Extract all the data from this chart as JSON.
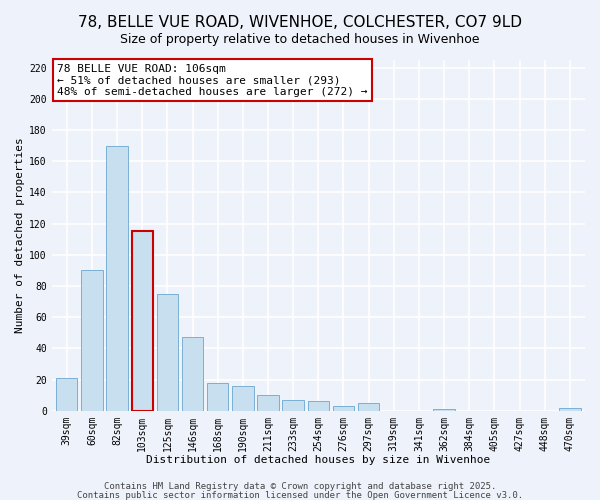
{
  "title": "78, BELLE VUE ROAD, WIVENHOE, COLCHESTER, CO7 9LD",
  "subtitle": "Size of property relative to detached houses in Wivenhoe",
  "xlabel": "Distribution of detached houses by size in Wivenhoe",
  "ylabel": "Number of detached properties",
  "categories": [
    "39sqm",
    "60sqm",
    "82sqm",
    "103sqm",
    "125sqm",
    "146sqm",
    "168sqm",
    "190sqm",
    "211sqm",
    "233sqm",
    "254sqm",
    "276sqm",
    "297sqm",
    "319sqm",
    "341sqm",
    "362sqm",
    "384sqm",
    "405sqm",
    "427sqm",
    "448sqm",
    "470sqm"
  ],
  "values": [
    21,
    90,
    170,
    115,
    75,
    47,
    18,
    16,
    10,
    7,
    6,
    3,
    5,
    0,
    0,
    1,
    0,
    0,
    0,
    0,
    2
  ],
  "bar_color": "#c8dff0",
  "bar_edge_color": "#7aafd4",
  "highlight_bar_index": 3,
  "highlight_bar_edge_color": "#cc0000",
  "annotation_text": "78 BELLE VUE ROAD: 106sqm\n← 51% of detached houses are smaller (293)\n48% of semi-detached houses are larger (272) →",
  "annotation_box_edge_color": "#cc0000",
  "annotation_box_bg": "#ffffff",
  "ylim": [
    0,
    225
  ],
  "yticks": [
    0,
    20,
    40,
    60,
    80,
    100,
    120,
    140,
    160,
    180,
    200,
    220
  ],
  "background_color": "#eef2fa",
  "grid_color": "#ffffff",
  "footer1": "Contains HM Land Registry data © Crown copyright and database right 2025.",
  "footer2": "Contains public sector information licensed under the Open Government Licence v3.0.",
  "title_fontsize": 11,
  "subtitle_fontsize": 9,
  "axis_label_fontsize": 8,
  "tick_fontsize": 7,
  "annotation_fontsize": 8,
  "footer_fontsize": 6.5
}
